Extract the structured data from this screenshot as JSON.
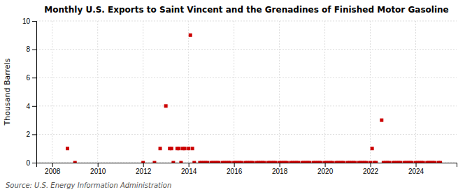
{
  "chart_data": {
    "type": "scatter",
    "title": "Monthly U.S. Exports to Saint Vincent and the Grenadines of Finished Motor Gasoline",
    "y_label": "Thousand Barrels",
    "annotations": [
      "Source: U.S. Energy Information Administration"
    ],
    "x": [
      2008.67,
      2009.0,
      2012.0,
      2012.5,
      2012.75,
      2013.0,
      2013.17,
      2013.25,
      2013.33,
      2013.5,
      2013.58,
      2013.67,
      2013.75,
      2013.83,
      2014.0,
      2014.08,
      2014.17,
      2014.25,
      2014.5,
      2014.58,
      2014.67,
      2014.75,
      2014.83,
      2015.0,
      2015.08,
      2015.17,
      2015.25,
      2015.33,
      2015.5,
      2015.58,
      2015.67,
      2015.75,
      2015.83,
      2016.0,
      2016.08,
      2016.17,
      2016.25,
      2016.33,
      2016.5,
      2016.58,
      2016.67,
      2016.75,
      2016.83,
      2017.0,
      2017.08,
      2017.17,
      2017.25,
      2017.33,
      2017.5,
      2017.58,
      2017.67,
      2017.75,
      2017.83,
      2018.0,
      2018.08,
      2018.17,
      2018.25,
      2018.33,
      2018.5,
      2018.58,
      2018.67,
      2018.75,
      2018.83,
      2019.0,
      2019.08,
      2019.17,
      2019.25,
      2019.33,
      2019.5,
      2019.58,
      2019.67,
      2019.75,
      2019.83,
      2020.0,
      2020.08,
      2020.17,
      2020.25,
      2020.33,
      2020.5,
      2020.58,
      2020.67,
      2020.75,
      2020.83,
      2021.0,
      2021.08,
      2021.17,
      2021.25,
      2021.33,
      2021.5,
      2021.58,
      2021.67,
      2021.75,
      2021.83,
      2022.0,
      2022.08,
      2022.17,
      2022.25,
      2022.5,
      2022.58,
      2022.67,
      2022.75,
      2022.83,
      2023.0,
      2023.08,
      2023.17,
      2023.25,
      2023.33,
      2023.5,
      2023.58,
      2023.67,
      2023.75,
      2023.83,
      2024.0,
      2024.08,
      2024.17,
      2024.25,
      2024.33,
      2024.5,
      2024.58,
      2024.67,
      2024.75,
      2024.83,
      2025.0,
      2025.08
    ],
    "values": [
      1,
      0,
      0,
      0,
      1,
      4,
      1,
      1,
      0,
      1,
      1,
      0,
      1,
      1,
      1,
      9,
      1,
      0,
      0,
      0,
      0,
      0,
      0,
      0,
      0,
      0,
      0,
      0,
      0,
      0,
      0,
      0,
      0,
      0,
      0,
      0,
      0,
      0,
      0,
      0,
      0,
      0,
      0,
      0,
      0,
      0,
      0,
      0,
      0,
      0,
      0,
      0,
      0,
      0,
      0,
      0,
      0,
      0,
      0,
      0,
      0,
      0,
      0,
      0,
      0,
      0,
      0,
      0,
      0,
      0,
      0,
      0,
      0,
      0,
      0,
      0,
      0,
      0,
      0,
      0,
      0,
      0,
      0,
      0,
      0,
      0,
      0,
      0,
      0,
      0,
      0,
      0,
      0,
      0,
      1,
      0,
      0,
      3,
      0,
      0,
      0,
      0,
      0,
      0,
      0,
      0,
      0,
      0,
      0,
      0,
      0,
      0,
      0,
      0,
      0,
      0,
      0,
      0,
      0,
      0,
      0,
      0,
      0,
      0
    ],
    "color": "#cc0000",
    "marker": "square",
    "xlim": [
      2007.3,
      2025.8
    ],
    "xticks": [
      2008,
      2010,
      2012,
      2014,
      2016,
      2018,
      2020,
      2022,
      2024
    ],
    "ylim": [
      0,
      10
    ],
    "yticks": [
      0,
      2,
      4,
      6,
      8,
      10
    ],
    "grid": true
  }
}
